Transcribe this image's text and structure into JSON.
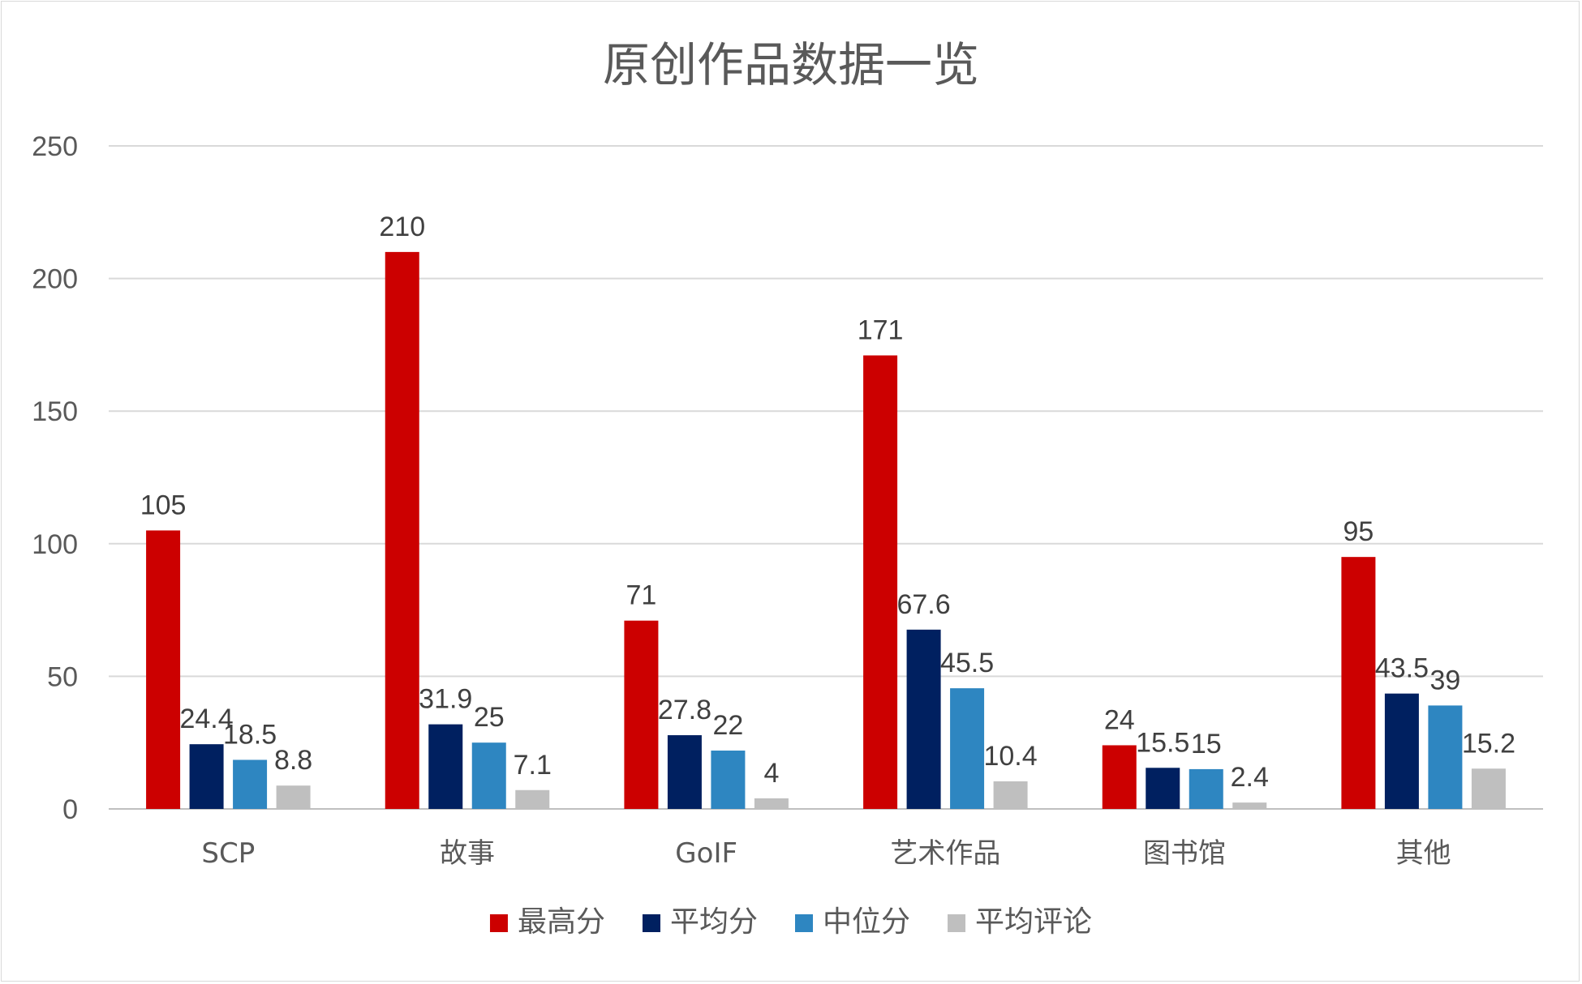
{
  "chart_data": {
    "type": "bar",
    "title": "原创作品数据一览",
    "categories": [
      "SCP",
      "故事",
      "GoIF",
      "艺术作品",
      "图书馆",
      "其他"
    ],
    "series": [
      {
        "name": "最高分",
        "color": "#cc0000",
        "values": [
          105,
          210,
          71,
          171,
          24,
          95
        ],
        "labels": [
          "105",
          "210",
          "71",
          "171",
          "24",
          "95"
        ]
      },
      {
        "name": "平均分",
        "color": "#002060",
        "values": [
          24.4,
          31.9,
          27.8,
          67.6,
          15.5,
          43.5
        ],
        "labels": [
          "24.4",
          "31.9",
          "27.8",
          "67.6",
          "15.5",
          "43.5"
        ]
      },
      {
        "name": "中位分",
        "color": "#2e86c1",
        "values": [
          18.5,
          25,
          22,
          45.5,
          15,
          39
        ],
        "labels": [
          "18.5",
          "25",
          "22",
          "45.5",
          "15",
          "39"
        ]
      },
      {
        "name": "平均评论",
        "color": "#bfbfbf",
        "values": [
          8.8,
          7.1,
          4,
          10.4,
          2.4,
          15.2
        ],
        "labels": [
          "8.8",
          "7.1",
          "4",
          "10.4",
          "2.4",
          "15.2"
        ]
      }
    ],
    "ylim": [
      0,
      250
    ],
    "yticks": [
      "0",
      "50",
      "100",
      "150",
      "200",
      "250"
    ],
    "grid": true,
    "legend_position": "bottom"
  }
}
